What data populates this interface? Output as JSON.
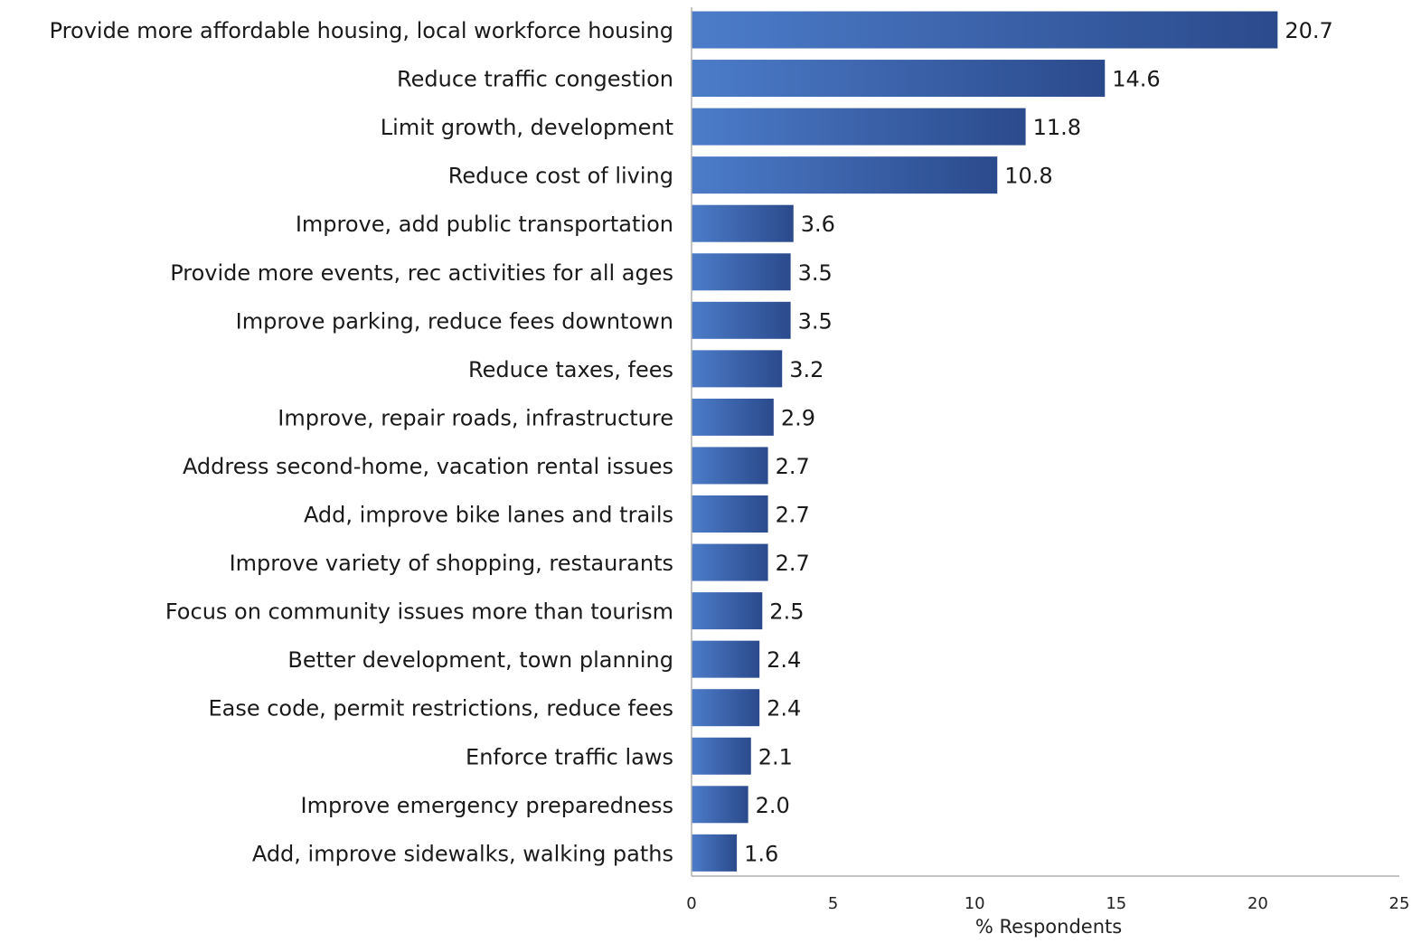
{
  "chart_data": {
    "type": "bar",
    "orientation": "horizontal",
    "categories": [
      "Provide more affordable housing, local workforce housing",
      "Reduce traffic congestion",
      "Limit growth, development",
      "Reduce cost of living",
      "Improve, add public transportation",
      "Provide more events, rec activities for all ages",
      "Improve parking, reduce fees downtown",
      "Reduce taxes, fees",
      "Improve, repair roads, infrastructure",
      "Address second-home, vacation rental issues",
      "Add, improve bike lanes and trails",
      "Improve variety of shopping, restaurants",
      "Focus on community issues more than tourism",
      "Better development, town planning",
      "Ease code, permit restrictions, reduce fees",
      "Enforce traffic laws",
      "Improve emergency preparedness",
      "Add, improve sidewalks, walking paths"
    ],
    "values": [
      20.7,
      14.6,
      11.8,
      10.8,
      3.6,
      3.5,
      3.5,
      3.2,
      2.9,
      2.7,
      2.7,
      2.7,
      2.5,
      2.4,
      2.4,
      2.1,
      2.0,
      1.6
    ],
    "value_labels": [
      "20.7",
      "14.6",
      "11.8",
      "10.8",
      "3.6",
      "3.5",
      "3.5",
      "3.2",
      "2.9",
      "2.7",
      "2.7",
      "2.7",
      "2.5",
      "2.4",
      "2.4",
      "2.1",
      "2.0",
      "1.6"
    ],
    "xlabel": "% Respondents",
    "xlim": [
      0,
      25
    ],
    "xticks": [
      0,
      5,
      10,
      15,
      20,
      25
    ],
    "grid": false,
    "legend": "none",
    "colors": {
      "bar_light": "#4c7cc9",
      "bar_dark": "#2b4a8c",
      "axis": "#b0b0b0"
    }
  }
}
